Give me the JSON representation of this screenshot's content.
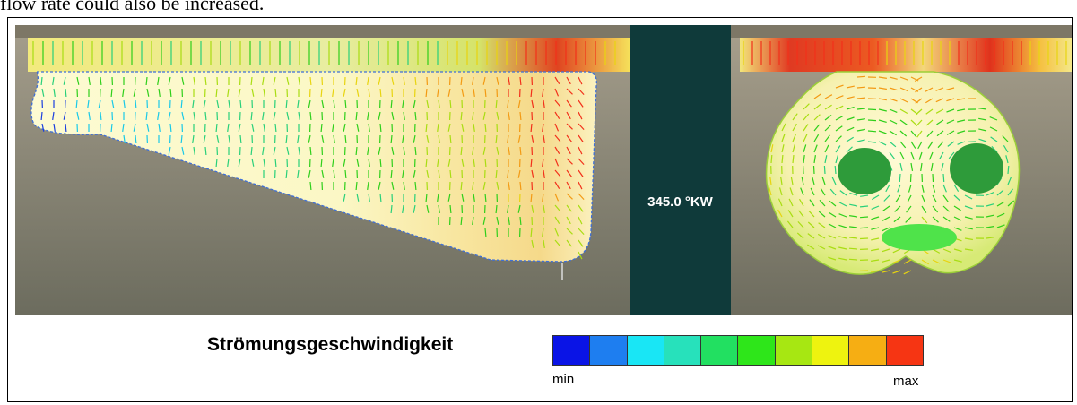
{
  "caption": {
    "text": "flow rate could also be increased."
  },
  "figure": {
    "crank_angle_label": "345.0 °KW",
    "legend": {
      "title": "Strömungsgeschwindigkeit",
      "min_label": "min",
      "max_label": "max",
      "colors": [
        "#0a14e6",
        "#1e7ef0",
        "#19e6f5",
        "#27e1bb",
        "#22e061",
        "#2ee61a",
        "#a7e712",
        "#eef30f",
        "#f6ae13",
        "#f63513"
      ]
    }
  }
}
